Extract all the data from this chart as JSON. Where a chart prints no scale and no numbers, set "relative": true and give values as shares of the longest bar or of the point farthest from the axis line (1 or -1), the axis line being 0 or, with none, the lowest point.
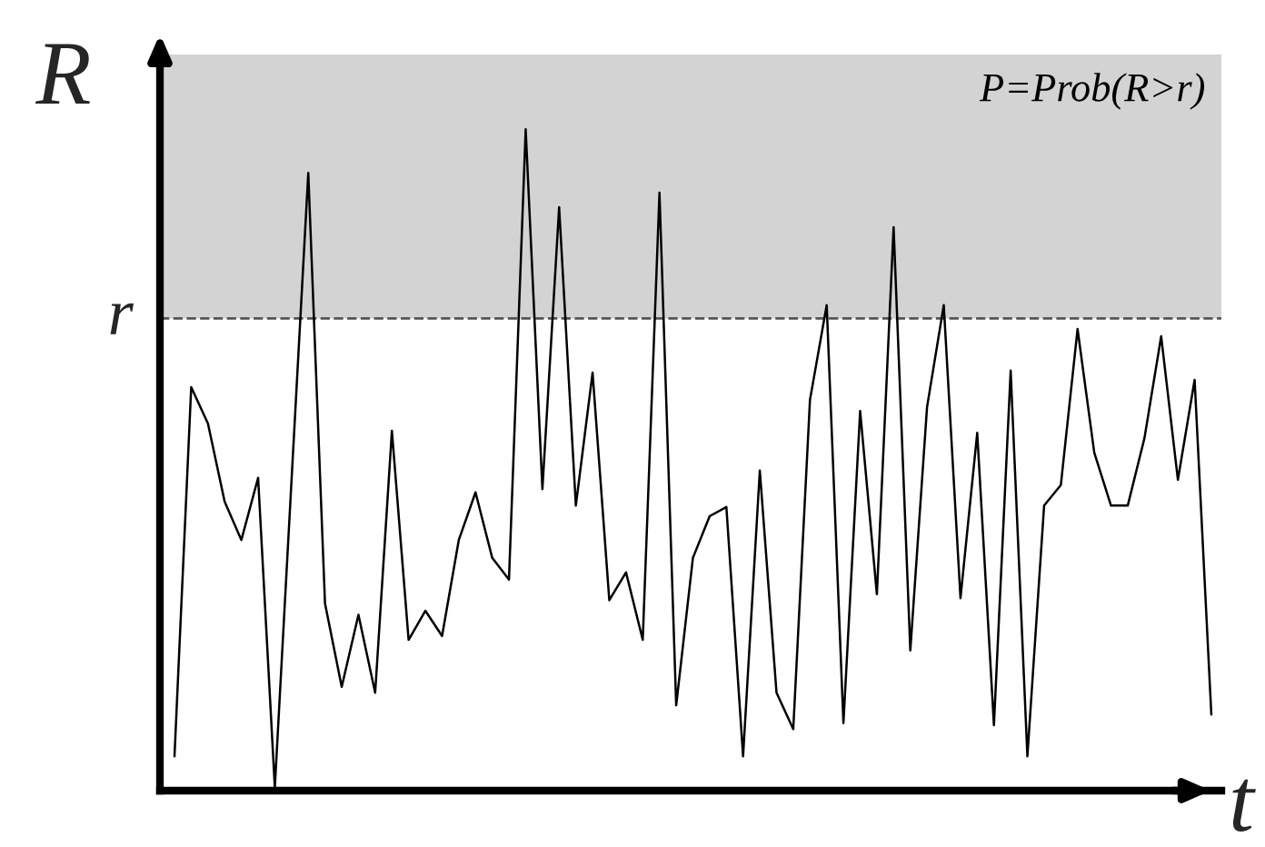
{
  "chart_data": {
    "type": "line",
    "relative": true,
    "xlabel": "t",
    "ylabel": "R",
    "categories": [
      null,
      null,
      null,
      null,
      null,
      null,
      null,
      null,
      null,
      null,
      null,
      null,
      null,
      null,
      null,
      null,
      null,
      null,
      null,
      null,
      null,
      null,
      null,
      null,
      null,
      null,
      null,
      null,
      null,
      null,
      null,
      null,
      null,
      null,
      null,
      null,
      null,
      null,
      null,
      null,
      null,
      null,
      null,
      null,
      null,
      null,
      null,
      null,
      null,
      null,
      null,
      null,
      null,
      null,
      null,
      null,
      null,
      null,
      null,
      null,
      null,
      null,
      null
    ],
    "series": [
      {
        "color": "#000000",
        "values": [
          0.052,
          0.61,
          0.555,
          0.437,
          0.379,
          0.473,
          0.005,
          0.47,
          0.934,
          0.283,
          0.157,
          0.266,
          0.148,
          0.544,
          0.228,
          0.272,
          0.234,
          0.379,
          0.451,
          0.352,
          0.319,
          1.0,
          0.456,
          0.882,
          0.431,
          0.632,
          0.288,
          0.33,
          0.228,
          0.904,
          0.129,
          0.352,
          0.415,
          0.429,
          0.052,
          0.484,
          0.148,
          0.093,
          0.591,
          0.734,
          0.102,
          0.574,
          0.297,
          0.852,
          0.212,
          0.58,
          0.734,
          0.291,
          0.541,
          0.099,
          0.635,
          0.052,
          0.431,
          0.462,
          0.698,
          0.511,
          0.431,
          0.431,
          0.533,
          0.687,
          0.47,
          0.621,
          0.115
        ]
      }
    ],
    "line_style": "solid",
    "bands": [
      {
        "axis": "y",
        "from": 0.714,
        "to": 1.113,
        "color": "#d3d3d3"
      }
    ],
    "ref_lines": [
      {
        "axis": "y",
        "value": 0.714,
        "label": "r",
        "line_style": "dashed",
        "color": "#555555"
      }
    ],
    "annotations": [
      "P=Prob(R>r)"
    ]
  }
}
